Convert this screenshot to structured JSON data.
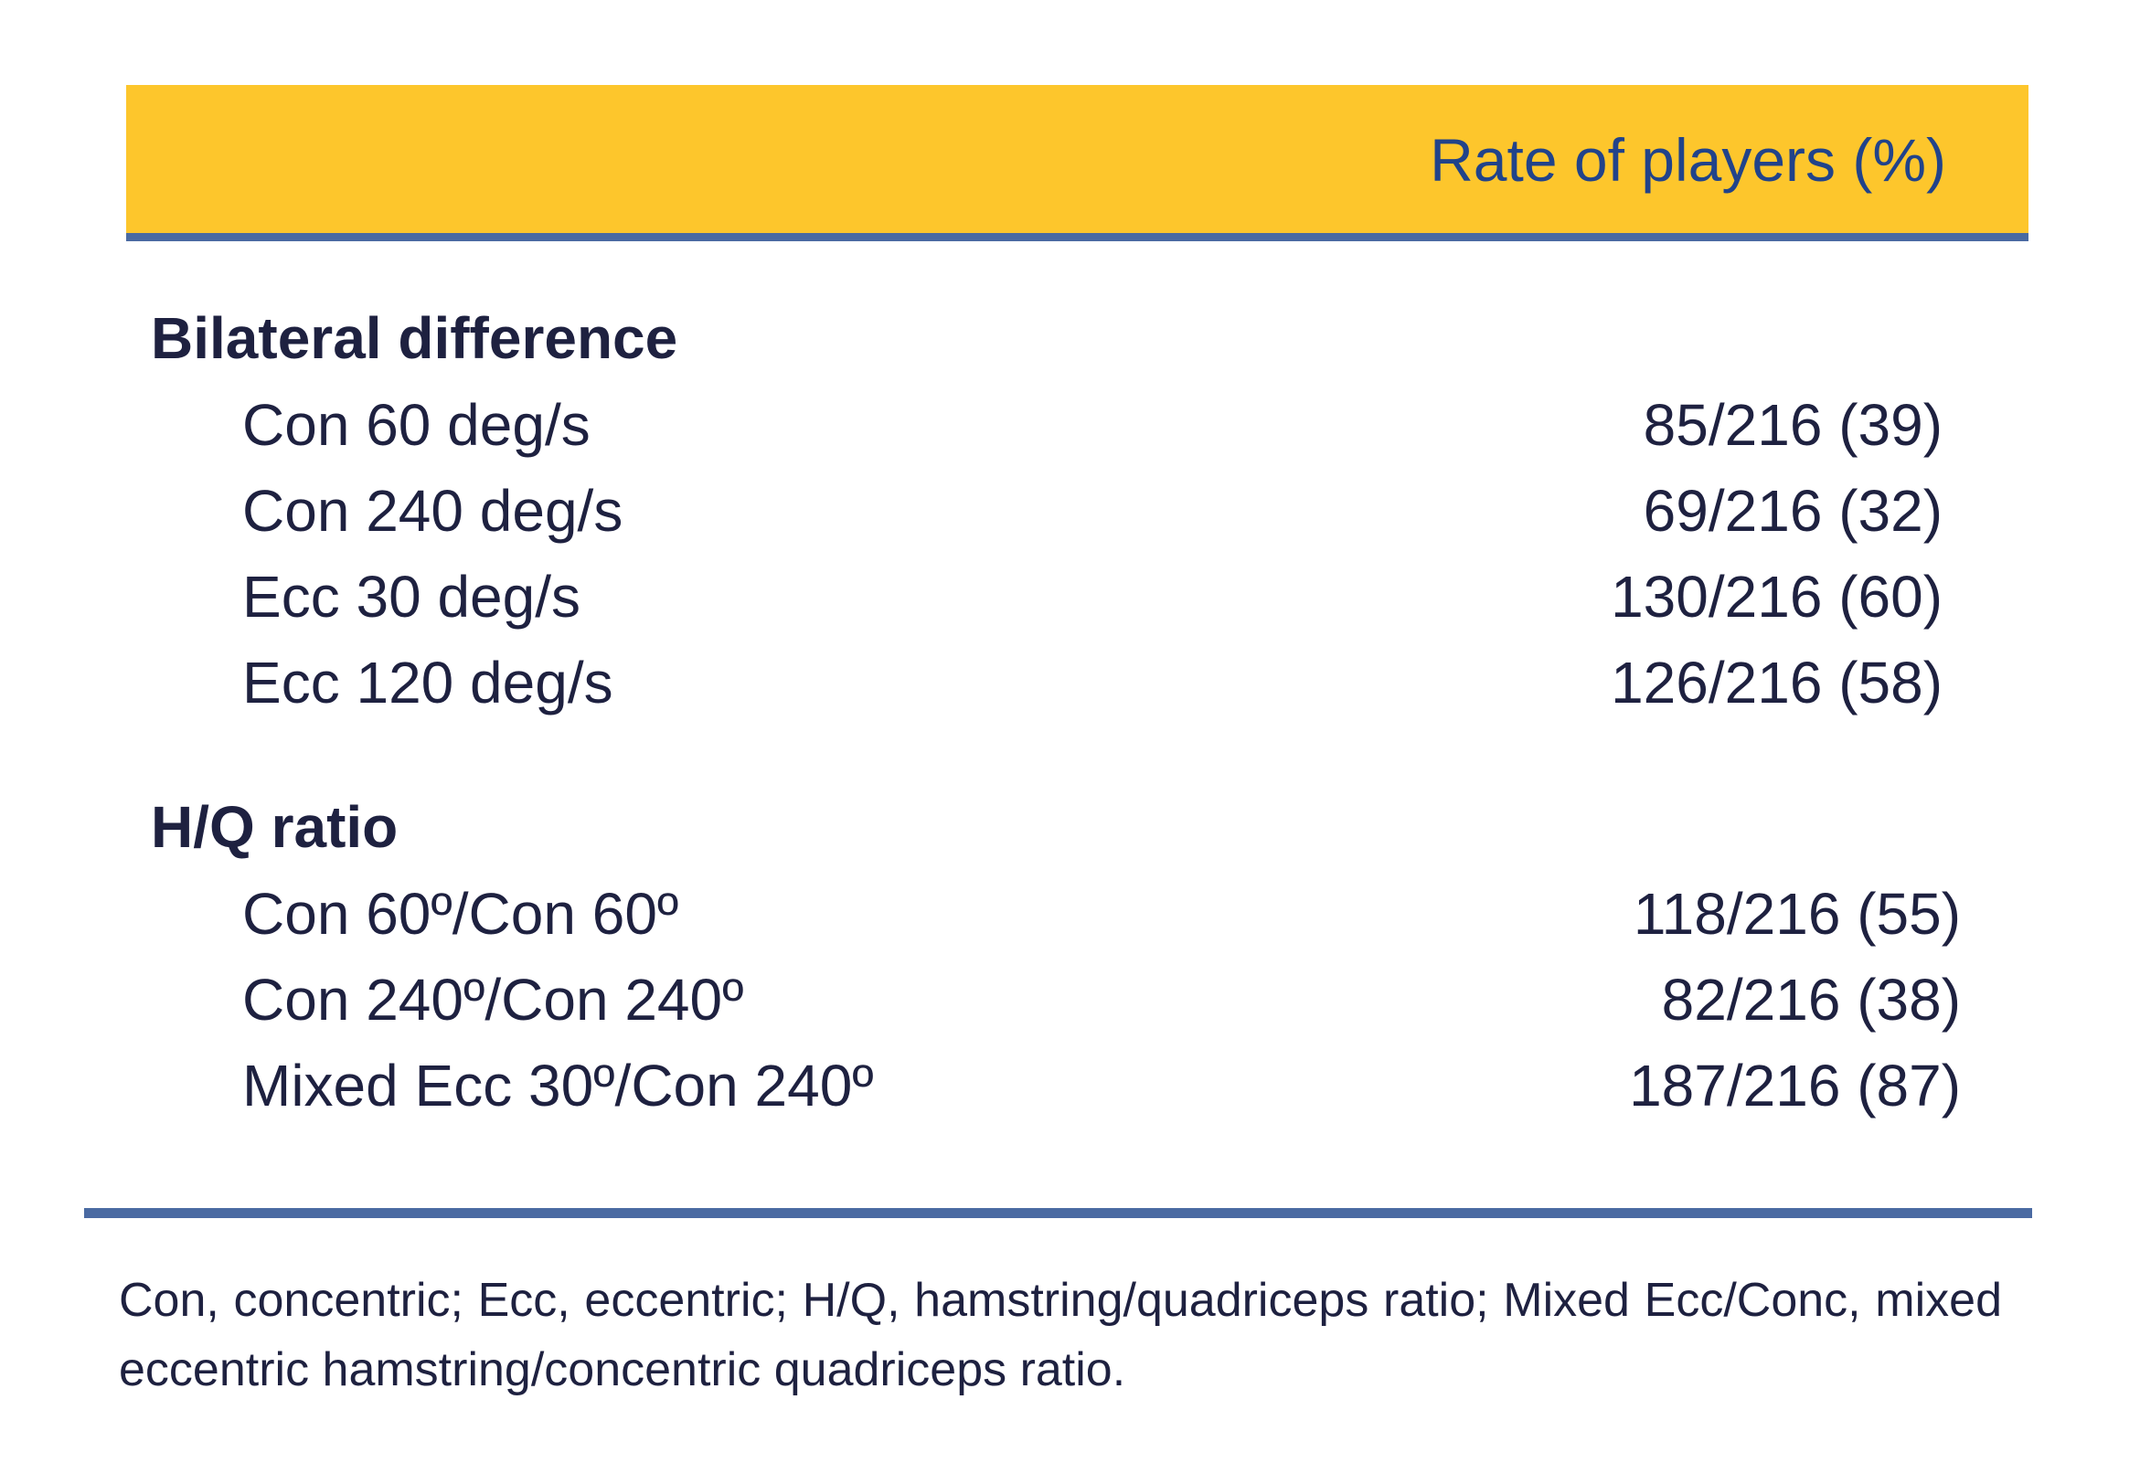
{
  "header": {
    "column_label": "Rate of players (%)"
  },
  "sections": [
    {
      "heading": "Bilateral difference",
      "rows": [
        {
          "label": "Con 60 deg/s",
          "value": "85/216 (39)"
        },
        {
          "label": "Con 240 deg/s",
          "value": "69/216 (32)"
        },
        {
          "label": "Ecc 30 deg/s",
          "value": "130/216 (60)"
        },
        {
          "label": "Ecc 120 deg/s",
          "value": "126/216 (58)"
        }
      ]
    },
    {
      "heading": "H/Q ratio",
      "rows": [
        {
          "label": "Con 60º/Con 60º",
          "value": "118/216 (55)"
        },
        {
          "label": "Con 240º/Con 240º",
          "value": "82/216 (38)"
        },
        {
          "label": "Mixed Ecc 30º/Con 240º",
          "value": "187/216 (87)"
        }
      ]
    }
  ],
  "footnote": "Con, concentric; Ecc, eccentric; H/Q, hamstring/quadriceps ratio; Mixed Ecc/Conc, mixed eccentric hamstring/concentric quadriceps ratio.",
  "colors": {
    "header_band": "#fdc62c",
    "rule": "#4a6aa2",
    "header_text": "#21438a",
    "body_text": "#1e2140"
  }
}
